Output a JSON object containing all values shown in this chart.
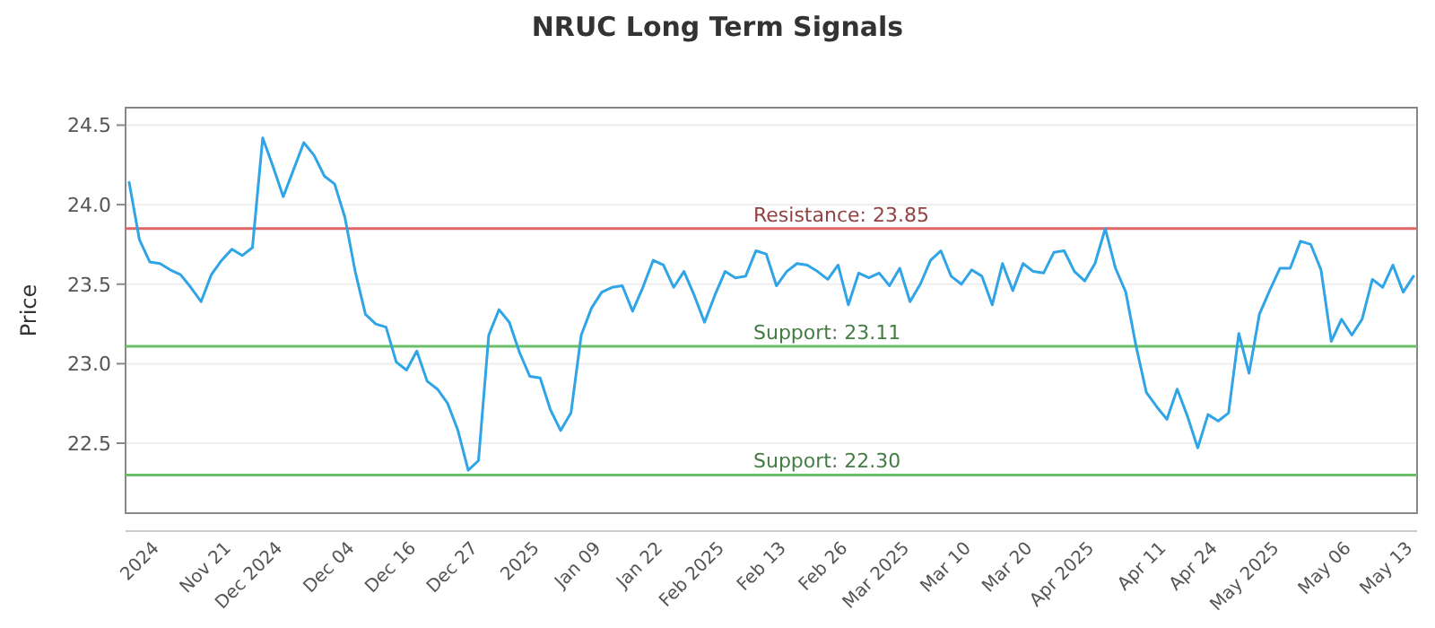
{
  "chart_data": {
    "type": "line",
    "title": "NRUC Long Term Signals",
    "ylabel": "Price",
    "categories": [
      null,
      null,
      null,
      "2024",
      null,
      null,
      null,
      null,
      null,
      null,
      "Nov 21",
      null,
      null,
      null,
      null,
      "Dec 2024",
      null,
      null,
      null,
      null,
      null,
      null,
      "Dec 04",
      null,
      null,
      null,
      null,
      null,
      "Dec 16",
      null,
      null,
      null,
      null,
      null,
      "Dec 27",
      null,
      null,
      null,
      null,
      null,
      "2025",
      null,
      null,
      null,
      null,
      null,
      "Jan 09",
      null,
      null,
      null,
      null,
      null,
      "Jan 22",
      null,
      null,
      null,
      null,
      null,
      "Feb 2025",
      null,
      null,
      null,
      null,
      null,
      "Feb 13",
      null,
      null,
      null,
      null,
      null,
      "Feb 26",
      null,
      null,
      null,
      null,
      null,
      "Mar 2025",
      null,
      null,
      null,
      null,
      null,
      "Mar 10",
      null,
      null,
      null,
      null,
      null,
      "Mar 20",
      null,
      null,
      null,
      null,
      null,
      "Apr 2025",
      null,
      null,
      null,
      null,
      null,
      null,
      "Apr 11",
      null,
      null,
      null,
      null,
      "Apr 24",
      null,
      null,
      null,
      null,
      null,
      "May 2025",
      null,
      null,
      null,
      null,
      null,
      null,
      "May 06",
      null,
      null,
      null,
      null,
      null,
      "May 13"
    ],
    "series": [
      {
        "color": "#2fa4e7",
        "values": [
          24.14,
          23.78,
          23.64,
          23.63,
          23.59,
          23.56,
          23.48,
          23.39,
          23.56,
          23.65,
          23.72,
          23.68,
          23.73,
          24.42,
          24.24,
          24.05,
          24.22,
          24.39,
          24.31,
          24.18,
          24.13,
          23.92,
          23.58,
          23.31,
          23.25,
          23.23,
          23.01,
          22.96,
          23.08,
          22.89,
          22.84,
          22.75,
          22.58,
          22.33,
          22.39,
          23.18,
          23.34,
          23.26,
          23.07,
          22.92,
          22.91,
          22.71,
          22.58,
          22.69,
          23.18,
          23.35,
          23.45,
          23.48,
          23.49,
          23.33,
          23.48,
          23.65,
          23.62,
          23.48,
          23.58,
          23.43,
          23.26,
          23.43,
          23.58,
          23.54,
          23.55,
          23.71,
          23.69,
          23.49,
          23.58,
          23.63,
          23.62,
          23.58,
          23.53,
          23.62,
          23.37,
          23.57,
          23.54,
          23.57,
          23.49,
          23.6,
          23.39,
          23.5,
          23.65,
          23.71,
          23.55,
          23.5,
          23.59,
          23.55,
          23.37,
          23.63,
          23.46,
          23.63,
          23.58,
          23.57,
          23.7,
          23.71,
          23.58,
          23.52,
          23.63,
          23.85,
          23.6,
          23.45,
          23.11,
          22.82,
          22.73,
          22.65,
          22.84,
          22.67,
          22.47,
          22.68,
          22.64,
          22.69,
          23.19,
          22.94,
          23.31,
          23.46,
          23.6,
          23.6,
          23.77,
          23.75,
          23.59,
          23.14,
          23.28,
          23.18,
          23.28,
          23.53,
          23.48,
          23.62,
          23.45,
          23.55
        ]
      }
    ],
    "ylim": [
      22.06,
      24.61
    ],
    "yticks": [
      {
        "value": 22.5,
        "label": "22.5"
      },
      {
        "value": 23,
        "label": "23.0"
      },
      {
        "value": 23.5,
        "label": "23.5"
      },
      {
        "value": 24,
        "label": "24.0"
      },
      {
        "value": 24.5,
        "label": "24.5"
      }
    ],
    "grid": "y",
    "marker": "none",
    "line_style": "solid",
    "ref_lines": [
      {
        "axis": "y",
        "value": 23.85,
        "label": "Resistance: 23.85",
        "color": "#e06666"
      },
      {
        "axis": "y",
        "value": 23.11,
        "label": "Support: 23.11",
        "color": "#6abf69"
      },
      {
        "axis": "y",
        "value": 22.3,
        "label": "Support: 22.30",
        "color": "#6abf69"
      }
    ]
  }
}
